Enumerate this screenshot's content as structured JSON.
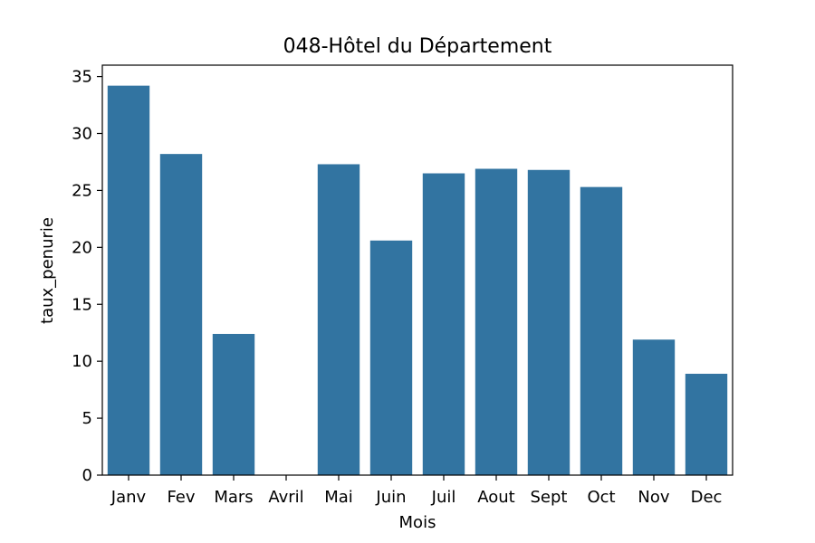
{
  "chart_data": {
    "type": "bar",
    "title": "048-Hôtel du Département",
    "xlabel": "Mois",
    "ylabel": "taux_penurie",
    "categories": [
      "Janv",
      "Fev",
      "Mars",
      "Avril",
      "Mai",
      "Juin",
      "Juil",
      "Aout",
      "Sept",
      "Oct",
      "Nov",
      "Dec"
    ],
    "values": [
      34.2,
      28.2,
      12.4,
      0,
      27.3,
      20.6,
      26.5,
      26.9,
      26.8,
      25.3,
      11.9,
      8.9
    ],
    "ylim": [
      0,
      36
    ],
    "yticks": [
      0,
      5,
      10,
      15,
      20,
      25,
      30,
      35
    ],
    "bar_color": "#3274a1",
    "grid": false,
    "legend": "none"
  }
}
